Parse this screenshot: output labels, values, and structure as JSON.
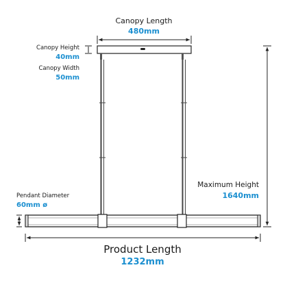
{
  "dimensions": {
    "canopy_length": {
      "label": "Canopy Length",
      "value": "480mm"
    },
    "canopy_height": {
      "label": "Canopy Height",
      "value": "40mm"
    },
    "canopy_width": {
      "label": "Canopy Width",
      "value": "50mm"
    },
    "maximum_height": {
      "label": "Maximum Height",
      "value": "1640mm"
    },
    "pendant_diameter": {
      "label": "Pendant Diameter",
      "value": "60mm ø"
    },
    "product_length": {
      "label": "Product Length",
      "value": "1232mm"
    }
  },
  "colors": {
    "label": "#1a1a1a",
    "value": "#1b8fd0",
    "line": "#222222"
  }
}
